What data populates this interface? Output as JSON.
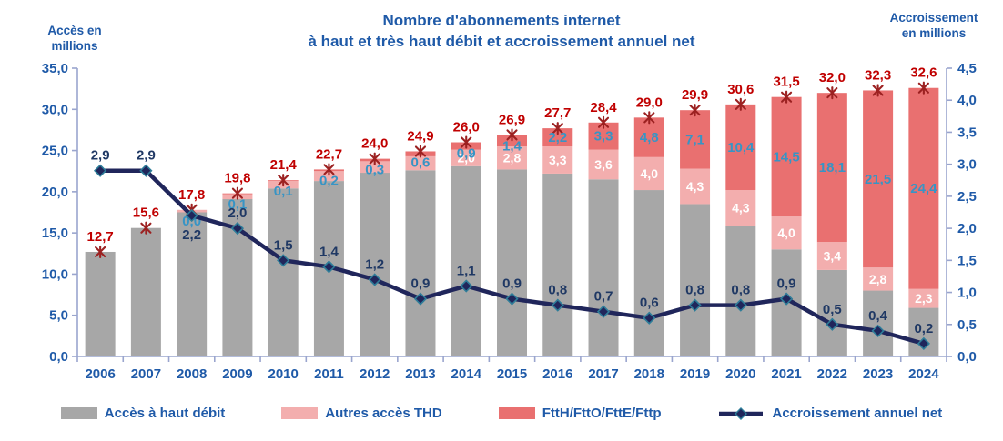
{
  "title": {
    "line1": "Nombre d'abonnements internet",
    "line2": "à haut et très haut débit et accroissement annuel net"
  },
  "left_axis_title": {
    "line1": "Accès en",
    "line2": "millions"
  },
  "right_axis_title": {
    "line1": "Accroissement",
    "line2": "en millions"
  },
  "colors": {
    "bar_gray": "#A7A7A7",
    "bar_pink": "#F3AEAE",
    "bar_red": "#E97070",
    "total_label": "#C00000",
    "x_marker": "#9C2121",
    "ftth_label": "#3794C5",
    "pink_label": "#FFFFFF",
    "line": "#20265B",
    "line_label": "#1F3864",
    "marker_stroke": "#2E7D99",
    "axis_line": "#9AA5CE",
    "text_blue": "#1F5AA8"
  },
  "chart_data": {
    "type": "bar+line",
    "title": "Nombre d'abonnements internet à haut et très haut débit et accroissement annuel net",
    "categories": [
      "2006",
      "2007",
      "2008",
      "2009",
      "2010",
      "2011",
      "2012",
      "2013",
      "2014",
      "2015",
      "2016",
      "2017",
      "2018",
      "2019",
      "2020",
      "2021",
      "2022",
      "2023",
      "2024"
    ],
    "left_axis": {
      "label": "Accès en millions",
      "min": 0,
      "max": 35,
      "step": 5,
      "tick_labels": [
        "0,0",
        "5,0",
        "10,0",
        "15,0",
        "20,0",
        "25,0",
        "30,0",
        "35,0"
      ]
    },
    "right_axis": {
      "label": "Accroissement en millions",
      "min": 0,
      "max": 4.5,
      "step": 0.5,
      "tick_labels": [
        "0,0",
        "0,5",
        "1,0",
        "1,5",
        "2,0",
        "2,5",
        "3,0",
        "3,5",
        "4,0",
        "4,5"
      ]
    },
    "series": [
      {
        "name": "Accès à haut débit",
        "type": "bar-stack",
        "axis": "left",
        "values": [
          12.7,
          15.6,
          17.5,
          19.1,
          20.4,
          21.3,
          22.3,
          22.6,
          23.1,
          22.7,
          22.2,
          21.5,
          20.2,
          18.5,
          15.9,
          13.0,
          10.5,
          8.0,
          5.9
        ],
        "labels": [
          null,
          null,
          null,
          null,
          null,
          null,
          null,
          null,
          null,
          null,
          null,
          null,
          null,
          null,
          null,
          null,
          null,
          null,
          null
        ]
      },
      {
        "name": "Autres accès THD",
        "type": "bar-stack",
        "axis": "left",
        "values": [
          0,
          0,
          0.3,
          0.6,
          0.9,
          1.2,
          1.4,
          1.7,
          2.0,
          2.8,
          3.3,
          3.6,
          4.0,
          4.3,
          4.3,
          4.0,
          3.4,
          2.8,
          2.3
        ],
        "labels": [
          null,
          null,
          null,
          null,
          null,
          null,
          null,
          null,
          "2,0",
          "2,8",
          "3,3",
          "3,6",
          "4,0",
          "4,3",
          "4,3",
          "4,0",
          "3,4",
          "2,8",
          "2,3"
        ]
      },
      {
        "name": "FttH/FttO/FttE/Fttp",
        "type": "bar-stack",
        "axis": "left",
        "values": [
          0,
          0,
          0.0,
          0.1,
          0.1,
          0.2,
          0.3,
          0.6,
          0.9,
          1.4,
          2.2,
          3.3,
          4.8,
          7.1,
          10.4,
          14.5,
          18.1,
          21.5,
          24.4
        ],
        "labels": [
          null,
          null,
          "0,0",
          "0,1",
          "0,1",
          "0,2",
          "0,3",
          "0,6",
          "0,9",
          "1,4",
          "2,2",
          "3,3",
          "4,8",
          "7,1",
          "10,4",
          "14,5",
          "18,1",
          "21,5",
          "24,4"
        ]
      },
      {
        "name": "Total abonnements",
        "type": "x-marker",
        "axis": "left",
        "values": [
          12.7,
          15.6,
          17.8,
          19.8,
          21.4,
          22.7,
          24.0,
          24.9,
          26.0,
          26.9,
          27.7,
          28.4,
          29.0,
          29.9,
          30.6,
          31.5,
          32.0,
          32.3,
          32.6
        ],
        "labels": [
          "12,7",
          "15,6",
          "17,8",
          "19,8",
          "21,4",
          "22,7",
          "24,0",
          "24,9",
          "26,0",
          "26,9",
          "27,7",
          "28,4",
          "29,0",
          "29,9",
          "30,6",
          "31,5",
          "32,0",
          "32,3",
          "32,6"
        ]
      },
      {
        "name": "Accroissement annuel net",
        "type": "line",
        "axis": "right",
        "values": [
          2.9,
          2.9,
          2.2,
          2.0,
          1.5,
          1.4,
          1.2,
          0.9,
          1.1,
          0.9,
          0.8,
          0.7,
          0.6,
          0.8,
          0.8,
          0.9,
          0.5,
          0.4,
          0.2
        ],
        "labels": [
          "2,9",
          "2,9",
          "2,2",
          "2,0",
          "1,5",
          "1,4",
          "1,2",
          "0,9",
          "1,1",
          "0,9",
          "0,8",
          "0,7",
          "0,6",
          "0,8",
          "0,8",
          "0,9",
          "0,5",
          "0,4",
          "0,2"
        ]
      }
    ]
  },
  "legend": {
    "items": [
      {
        "label": "Accès à haut débit",
        "color": "#A7A7A7",
        "kind": "swatch"
      },
      {
        "label": "Autres accès THD",
        "color": "#F3AEAE",
        "kind": "swatch"
      },
      {
        "label": "FttH/FttO/FttE/Fttp",
        "color": "#E97070",
        "kind": "swatch"
      },
      {
        "label": "Accroissement annuel net",
        "color": "#20265B",
        "kind": "line-marker"
      }
    ]
  }
}
